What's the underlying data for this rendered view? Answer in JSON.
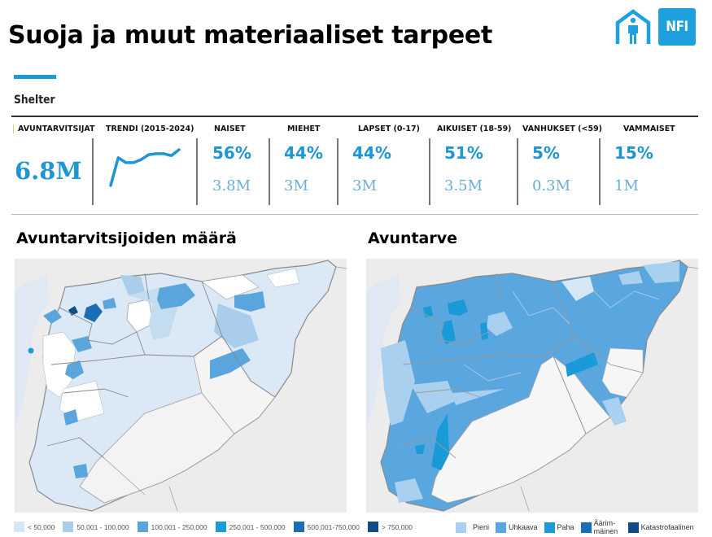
{
  "header": {
    "title": "Suoja ja muut materiaaliset tarpeet",
    "logos": [
      {
        "name": "shelter-icon",
        "label": ""
      },
      {
        "name": "nfi-icon",
        "label": "NFI"
      }
    ],
    "section_label": "Shelter",
    "accent_color": "#1c9ad6"
  },
  "stats": {
    "total": {
      "label": "AVUNTARVITSIJAT",
      "value": "6.8M"
    },
    "trend": {
      "label": "TRENDI (2015-2024)",
      "values": [
        1.0,
        3.8,
        3.3,
        3.3,
        3.6,
        4.1,
        4.2,
        4.2,
        4.0,
        4.6
      ]
    },
    "groups": [
      {
        "label": "NAISET",
        "pct": "56%",
        "abs": "3.8M"
      },
      {
        "label": "MIEHET",
        "pct": "44%",
        "abs": "3M"
      },
      {
        "label": "LAPSET (0-17)",
        "pct": "44%",
        "abs": "3M"
      },
      {
        "label": "AIKUISET (18-59)",
        "pct": "51%",
        "abs": "3.5M"
      },
      {
        "label": "VANHUKSET (<59)",
        "pct": "5%",
        "abs": "0.3M"
      },
      {
        "label": "VAMMAISET",
        "pct": "15%",
        "abs": "1M"
      }
    ]
  },
  "maps": [
    {
      "title": "Avuntarvitsijoiden määrä",
      "legend": [
        {
          "label": "< 50,000",
          "color": "#d6e6f5"
        },
        {
          "label": "50,001 - 100,000",
          "color": "#a9cdeb"
        },
        {
          "label": "100,001 - 250,000",
          "color": "#5aa5dc"
        },
        {
          "label": "250,001 - 500,000",
          "color": "#1b9ad8"
        },
        {
          "label": "500,001-750,000",
          "color": "#1a6fb4"
        },
        {
          "label": "> 750,000",
          "color": "#0e4d86"
        }
      ]
    },
    {
      "title": "Avuntarve",
      "legend": [
        {
          "label": "Pieni",
          "color": "#a9d0ee"
        },
        {
          "label": "Uhkaava",
          "color": "#5aa6de"
        },
        {
          "label": "Paha",
          "color": "#1b9ad8"
        },
        {
          "label": "Äärim-mäinen",
          "color": "#1a6fb4"
        },
        {
          "label": "Katastrofaalinen",
          "color": "#0e4d86"
        }
      ]
    }
  ]
}
